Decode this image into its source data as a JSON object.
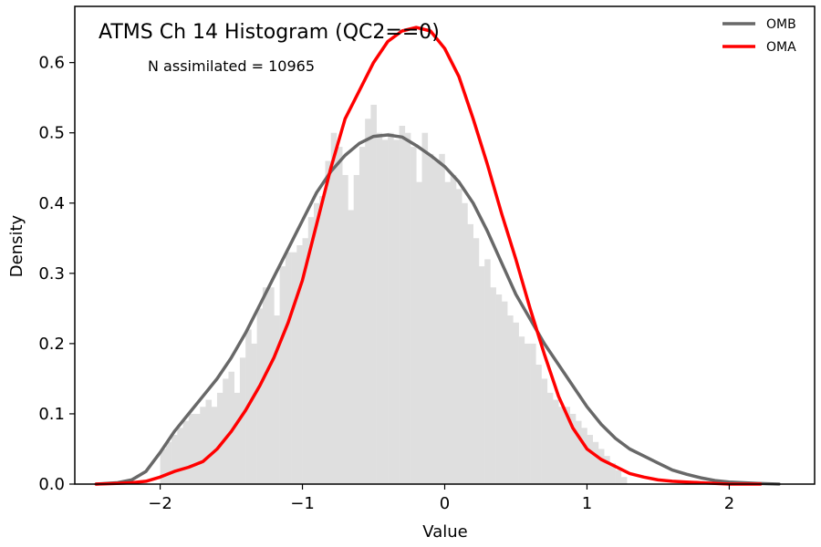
{
  "chart_data": {
    "type": "line",
    "title": "ATMS Ch 14 Histogram (QC2==0)",
    "annotation": "N assimilated = 10965",
    "xlabel": "Value",
    "ylabel": "Density",
    "xlim": [
      -2.6,
      2.6
    ],
    "ylim": [
      0.0,
      0.68
    ],
    "xticks": [
      -2,
      -1,
      0,
      1,
      2
    ],
    "xtick_labels": [
      "−2",
      "−1",
      "0",
      "1",
      "2"
    ],
    "yticks": [
      0.0,
      0.1,
      0.2,
      0.3,
      0.4,
      0.5,
      0.6
    ],
    "ytick_labels": [
      "0.0",
      "0.1",
      "0.2",
      "0.3",
      "0.4",
      "0.5",
      "0.6"
    ],
    "grid": false,
    "legend_position": "top-right",
    "histogram": {
      "color": "#dfdfdf",
      "bin_start": -2.0,
      "bin_width": 0.04,
      "densities": [
        0.05,
        0.06,
        0.07,
        0.08,
        0.09,
        0.1,
        0.1,
        0.11,
        0.12,
        0.11,
        0.13,
        0.15,
        0.16,
        0.13,
        0.18,
        0.22,
        0.2,
        0.25,
        0.28,
        0.28,
        0.24,
        0.31,
        0.33,
        0.33,
        0.34,
        0.35,
        0.38,
        0.4,
        0.41,
        0.46,
        0.5,
        0.48,
        0.44,
        0.39,
        0.44,
        0.48,
        0.52,
        0.54,
        0.5,
        0.49,
        0.5,
        0.49,
        0.51,
        0.5,
        0.48,
        0.43,
        0.5,
        0.47,
        0.46,
        0.47,
        0.43,
        0.44,
        0.42,
        0.4,
        0.37,
        0.35,
        0.31,
        0.32,
        0.28,
        0.27,
        0.26,
        0.24,
        0.23,
        0.21,
        0.2,
        0.2,
        0.17,
        0.15,
        0.13,
        0.12,
        0.11,
        0.11,
        0.1,
        0.09,
        0.08,
        0.07,
        0.06,
        0.05,
        0.04,
        0.03,
        0.02,
        0.01
      ]
    },
    "series": [
      {
        "name": "OMB",
        "color": "#686868",
        "x": [
          -2.45,
          -2.3,
          -2.2,
          -2.1,
          -2.0,
          -1.9,
          -1.8,
          -1.7,
          -1.6,
          -1.5,
          -1.4,
          -1.3,
          -1.2,
          -1.1,
          -1.0,
          -0.9,
          -0.8,
          -0.7,
          -0.6,
          -0.5,
          -0.4,
          -0.3,
          -0.2,
          -0.1,
          0.0,
          0.1,
          0.2,
          0.3,
          0.4,
          0.5,
          0.6,
          0.7,
          0.8,
          0.9,
          1.0,
          1.1,
          1.2,
          1.3,
          1.4,
          1.5,
          1.6,
          1.7,
          1.8,
          1.9,
          2.0,
          2.1,
          2.2,
          2.35
        ],
        "y": [
          0.0,
          0.002,
          0.006,
          0.018,
          0.045,
          0.075,
          0.1,
          0.125,
          0.15,
          0.18,
          0.215,
          0.255,
          0.295,
          0.335,
          0.375,
          0.415,
          0.445,
          0.468,
          0.485,
          0.495,
          0.497,
          0.494,
          0.482,
          0.468,
          0.452,
          0.43,
          0.4,
          0.36,
          0.315,
          0.27,
          0.235,
          0.2,
          0.17,
          0.14,
          0.11,
          0.085,
          0.065,
          0.05,
          0.04,
          0.03,
          0.02,
          0.014,
          0.009,
          0.005,
          0.003,
          0.002,
          0.001,
          0.0
        ]
      },
      {
        "name": "OMA",
        "color": "#ff0000",
        "x": [
          -2.45,
          -2.3,
          -2.2,
          -2.1,
          -2.0,
          -1.9,
          -1.8,
          -1.7,
          -1.6,
          -1.5,
          -1.4,
          -1.3,
          -1.2,
          -1.1,
          -1.0,
          -0.9,
          -0.8,
          -0.7,
          -0.6,
          -0.5,
          -0.4,
          -0.3,
          -0.2,
          -0.1,
          0.0,
          0.1,
          0.2,
          0.3,
          0.4,
          0.5,
          0.6,
          0.7,
          0.8,
          0.9,
          1.0,
          1.1,
          1.2,
          1.3,
          1.4,
          1.5,
          1.6,
          1.7,
          1.8,
          1.9,
          2.0,
          2.1,
          2.22
        ],
        "y": [
          0.0,
          0.001,
          0.002,
          0.004,
          0.01,
          0.018,
          0.024,
          0.032,
          0.05,
          0.075,
          0.105,
          0.14,
          0.18,
          0.23,
          0.29,
          0.37,
          0.45,
          0.52,
          0.56,
          0.6,
          0.63,
          0.645,
          0.65,
          0.645,
          0.62,
          0.58,
          0.52,
          0.455,
          0.385,
          0.32,
          0.25,
          0.185,
          0.125,
          0.08,
          0.05,
          0.035,
          0.025,
          0.015,
          0.01,
          0.006,
          0.004,
          0.003,
          0.002,
          0.001,
          0.0,
          0.0,
          0.0
        ]
      }
    ]
  }
}
